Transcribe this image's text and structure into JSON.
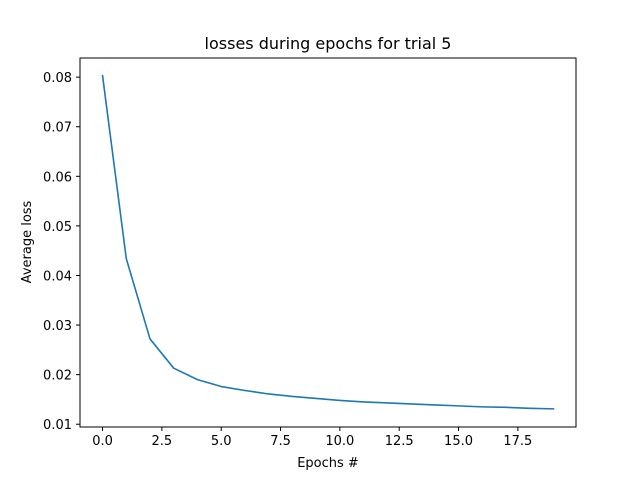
{
  "chart_data": {
    "type": "line",
    "title": "losses during epochs for trial 5",
    "xlabel": "Epochs #",
    "ylabel": "Average loss",
    "xlim": [
      -0.95,
      19.95
    ],
    "ylim": [
      0.00944,
      0.08386
    ],
    "xticks": [
      0.0,
      2.5,
      5.0,
      7.5,
      10.0,
      12.5,
      15.0,
      17.5
    ],
    "xtick_labels": [
      "0.0",
      "2.5",
      "5.0",
      "7.5",
      "10.0",
      "12.5",
      "15.0",
      "17.5"
    ],
    "yticks": [
      0.01,
      0.02,
      0.03,
      0.04,
      0.05,
      0.06,
      0.07,
      0.08
    ],
    "ytick_labels": [
      "0.01",
      "0.02",
      "0.03",
      "0.04",
      "0.05",
      "0.06",
      "0.07",
      "0.08"
    ],
    "grid": false,
    "line_color": "#1f77b4",
    "series": [
      {
        "x": [
          0,
          1,
          2,
          3,
          4,
          5,
          6,
          7,
          8,
          9,
          10,
          11,
          12,
          13,
          14,
          15,
          16,
          17,
          18,
          19
        ],
        "values": [
          0.0803,
          0.0434,
          0.0272,
          0.0213,
          0.019,
          0.0176,
          0.0168,
          0.0161,
          0.0156,
          0.0152,
          0.0148,
          0.0145,
          0.0143,
          0.0141,
          0.0139,
          0.0137,
          0.0135,
          0.0134,
          0.0132,
          0.0131
        ]
      }
    ]
  }
}
